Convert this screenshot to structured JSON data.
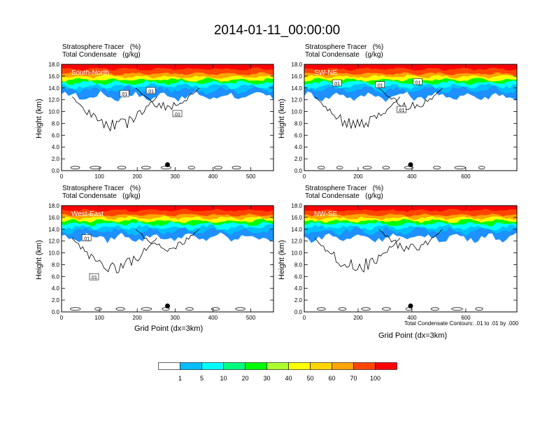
{
  "title": "2014-01-11_00:00:00",
  "panel_title_line1": "Stratosphere Tracer   (%)",
  "panel_title_line2": "Total Condensate   (g/kg)",
  "xlabel": "Grid Point (dx=3km)",
  "ylabel": "Height (km)",
  "contour_note": "Total Condensate Contours: .01 to .01 by .000",
  "colors": {
    "levels": [
      "#ffffff",
      "#1e90ff",
      "#00bfff",
      "#00ffff",
      "#00ff7f",
      "#00ff00",
      "#adff2f",
      "#ffff00",
      "#ffd700",
      "#ffa500",
      "#ff4500",
      "#ff0000"
    ]
  },
  "colorbar": {
    "labels": [
      "1",
      "5",
      "10",
      "20",
      "30",
      "40",
      "50",
      "60",
      "70",
      "100"
    ]
  },
  "chart_data": [
    {
      "type": "heatmap",
      "name": "South-North",
      "xlim": [
        0,
        560
      ],
      "ylim": [
        0,
        18
      ],
      "xticks": [
        "0",
        "100",
        "200",
        "300",
        "400",
        "500"
      ],
      "yticks": [
        "0.0",
        "2.0",
        "4.0",
        "6.0",
        "8.0",
        "10.0",
        "12.0",
        "14.0",
        "16.0",
        "18.0"
      ],
      "marker_x": 280,
      "marker_y": 1.0,
      "contour_labels": [
        ".01",
        ".01",
        ".01"
      ],
      "contour_label_pos": [
        [
          165,
          13
        ],
        [
          235,
          13.5
        ],
        [
          305,
          9.6
        ]
      ]
    },
    {
      "type": "heatmap",
      "name": "SW-NE",
      "xlim": [
        0,
        790
      ],
      "ylim": [
        0,
        18
      ],
      "xticks": [
        "0",
        "200",
        "400",
        "600"
      ],
      "yticks": [
        "0.0",
        "2.0",
        "4.0",
        "6.0",
        "8.0",
        "10.0",
        "12.0",
        "14.0",
        "16.0",
        "18.0"
      ],
      "marker_x": 395,
      "marker_y": 1.0,
      "contour_labels": [
        ".01",
        ".01",
        ".01",
        ".01"
      ],
      "contour_label_pos": [
        [
          120,
          14.8
        ],
        [
          280,
          14.5
        ],
        [
          360,
          10.3
        ],
        [
          420,
          15
        ]
      ]
    },
    {
      "type": "heatmap",
      "name": "West-East",
      "xlim": [
        0,
        560
      ],
      "ylim": [
        0,
        18
      ],
      "xticks": [
        "0",
        "100",
        "200",
        "300",
        "400",
        "500"
      ],
      "yticks": [
        "0.0",
        "2.0",
        "4.0",
        "6.0",
        "8.0",
        "10.0",
        "12.0",
        "14.0",
        "16.0",
        "18.0"
      ],
      "marker_x": 280,
      "marker_y": 1.0,
      "contour_labels": [
        ".01",
        ".01"
      ],
      "contour_label_pos": [
        [
          65,
          12.5
        ],
        [
          85,
          5.9
        ]
      ]
    },
    {
      "type": "heatmap",
      "name": "NW-SE",
      "xlim": [
        0,
        790
      ],
      "ylim": [
        0,
        18
      ],
      "xticks": [
        "0",
        "200",
        "400",
        "600"
      ],
      "yticks": [
        "0.0",
        "2.0",
        "4.0",
        "6.0",
        "8.0",
        "10.0",
        "12.0",
        "14.0",
        "16.0",
        "18.0"
      ],
      "marker_x": 395,
      "marker_y": 1.0,
      "contour_labels": [],
      "contour_label_pos": []
    }
  ]
}
